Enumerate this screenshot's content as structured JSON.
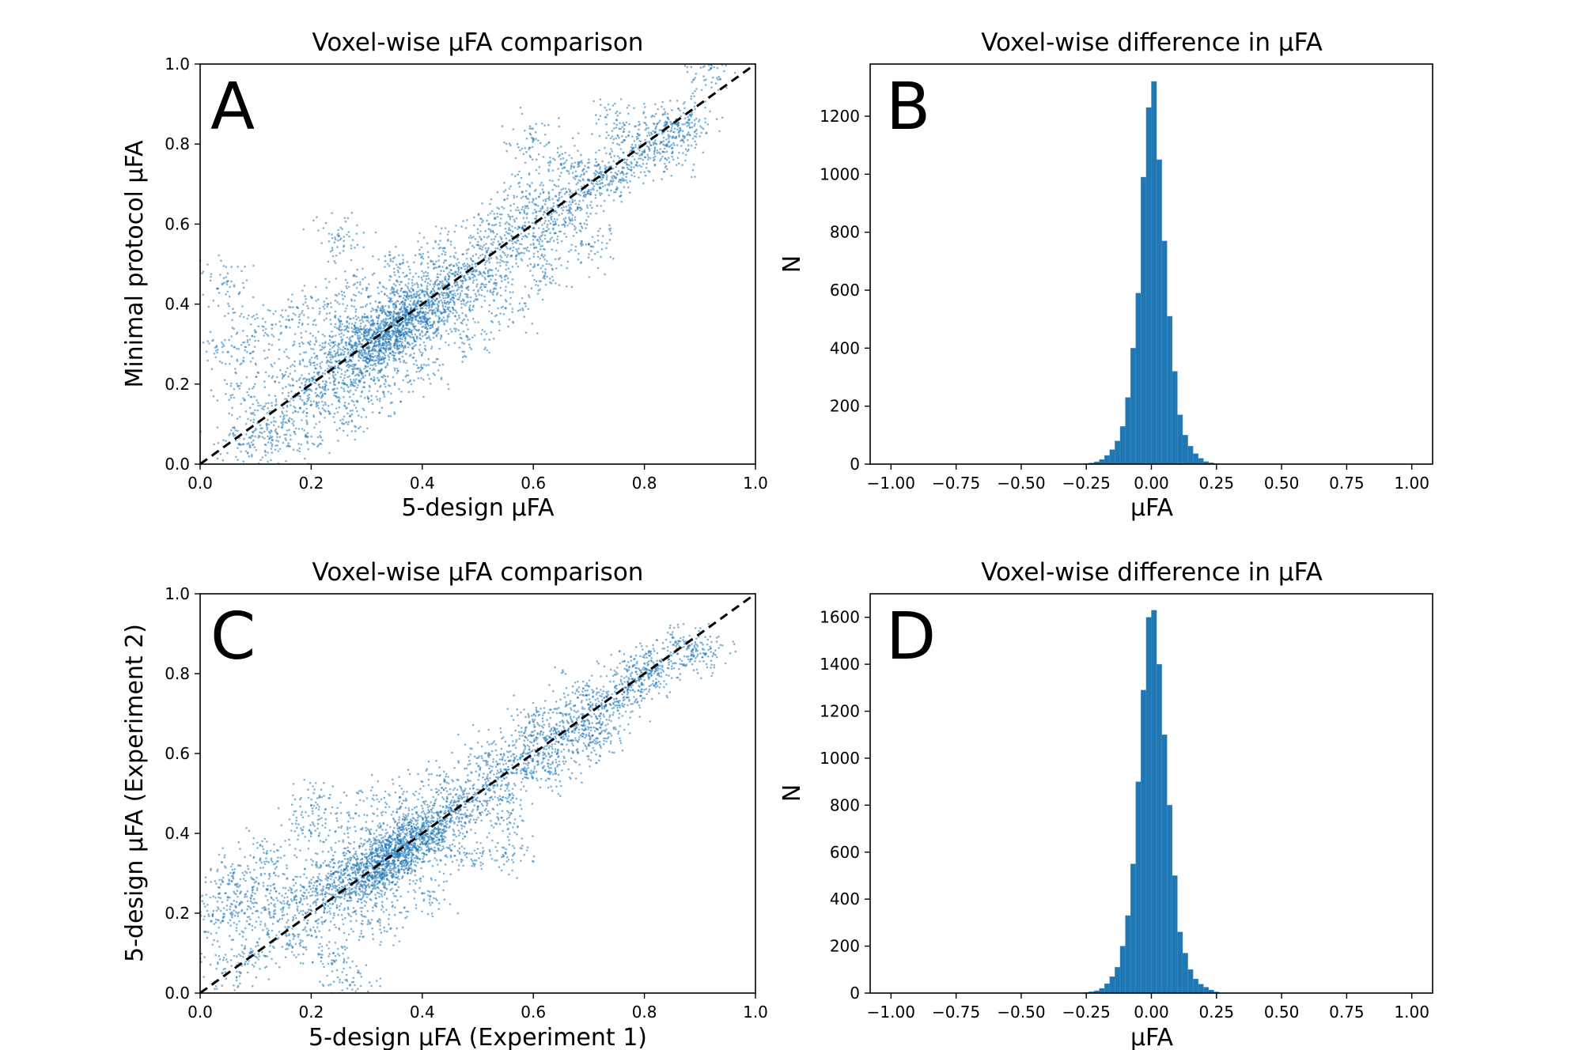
{
  "colors": {
    "series": "#1f77b4",
    "axis": "#000000",
    "background": "#ffffff"
  },
  "chart_data": [
    {
      "id": "A",
      "type": "scatter",
      "panel_label": "A",
      "title": "Voxel-wise μFA comparison",
      "xlabel": "5-design μFA",
      "ylabel": "Minimal protocol μFA",
      "xlim": [
        0.0,
        1.0
      ],
      "ylim": [
        0.0,
        1.0
      ],
      "xticks": [
        0.0,
        0.2,
        0.4,
        0.6,
        0.8,
        1.0
      ],
      "xtick_labels": [
        "0.0",
        "0.2",
        "0.4",
        "0.6",
        "0.8",
        "1.0"
      ],
      "yticks": [
        0.0,
        0.2,
        0.4,
        0.6,
        0.8,
        1.0
      ],
      "ytick_labels": [
        "0.0",
        "0.2",
        "0.4",
        "0.6",
        "0.8",
        "1.0"
      ],
      "reference_line": {
        "style": "dashed",
        "from": [
          0.0,
          0.0
        ],
        "to": [
          1.0,
          1.0
        ]
      },
      "series": [
        {
          "name": "voxels",
          "points": [
            [
              0.08,
              0.16
            ],
            [
              0.12,
              0.1
            ],
            [
              0.15,
              0.22
            ],
            [
              0.18,
              0.14
            ],
            [
              0.2,
              0.2
            ],
            [
              0.21,
              0.27
            ],
            [
              0.22,
              0.17
            ],
            [
              0.24,
              0.23
            ],
            [
              0.25,
              0.3
            ],
            [
              0.26,
              0.2
            ],
            [
              0.27,
              0.26
            ],
            [
              0.28,
              0.33
            ],
            [
              0.29,
              0.23
            ],
            [
              0.3,
              0.29
            ],
            [
              0.31,
              0.35
            ],
            [
              0.32,
              0.27
            ],
            [
              0.33,
              0.32
            ],
            [
              0.34,
              0.38
            ],
            [
              0.35,
              0.3
            ],
            [
              0.36,
              0.35
            ],
            [
              0.37,
              0.41
            ],
            [
              0.38,
              0.33
            ],
            [
              0.39,
              0.37
            ],
            [
              0.4,
              0.43
            ],
            [
              0.41,
              0.36
            ],
            [
              0.42,
              0.4
            ],
            [
              0.43,
              0.45
            ],
            [
              0.44,
              0.38
            ],
            [
              0.45,
              0.43
            ],
            [
              0.46,
              0.48
            ],
            [
              0.48,
              0.44
            ],
            [
              0.5,
              0.5
            ],
            [
              0.52,
              0.47
            ],
            [
              0.54,
              0.55
            ],
            [
              0.56,
              0.52
            ],
            [
              0.58,
              0.59
            ],
            [
              0.6,
              0.57
            ],
            [
              0.62,
              0.63
            ],
            [
              0.64,
              0.6
            ],
            [
              0.66,
              0.68
            ],
            [
              0.68,
              0.64
            ],
            [
              0.7,
              0.71
            ],
            [
              0.72,
              0.69
            ],
            [
              0.74,
              0.74
            ],
            [
              0.76,
              0.73
            ],
            [
              0.78,
              0.79
            ],
            [
              0.8,
              0.78
            ],
            [
              0.82,
              0.83
            ],
            [
              0.84,
              0.85
            ],
            [
              0.88,
              0.86
            ],
            [
              0.05,
              0.28
            ],
            [
              0.07,
              0.05
            ],
            [
              0.1,
              0.33
            ],
            [
              0.13,
              0.06
            ],
            [
              0.16,
              0.36
            ],
            [
              0.19,
              0.07
            ],
            [
              0.23,
              0.4
            ],
            [
              0.27,
              0.12
            ],
            [
              0.3,
              0.44
            ],
            [
              0.33,
              0.18
            ],
            [
              0.36,
              0.5
            ],
            [
              0.4,
              0.24
            ],
            [
              0.44,
              0.54
            ],
            [
              0.48,
              0.32
            ],
            [
              0.52,
              0.6
            ],
            [
              0.55,
              0.39
            ],
            [
              0.58,
              0.68
            ],
            [
              0.62,
              0.47
            ],
            [
              0.65,
              0.75
            ],
            [
              0.7,
              0.55
            ],
            [
              0.3,
              0.31
            ],
            [
              0.32,
              0.33
            ],
            [
              0.34,
              0.33
            ],
            [
              0.35,
              0.36
            ],
            [
              0.36,
              0.33
            ],
            [
              0.38,
              0.38
            ],
            [
              0.4,
              0.39
            ],
            [
              0.33,
              0.29
            ],
            [
              0.31,
              0.26
            ],
            [
              0.37,
              0.37
            ],
            [
              0.92,
              0.99
            ],
            [
              0.87,
              0.82
            ],
            [
              0.04,
              0.45
            ],
            [
              0.25,
              0.57
            ],
            [
              0.6,
              0.81
            ],
            [
              0.75,
              0.86
            ],
            [
              0.85,
              0.79
            ]
          ]
        }
      ]
    },
    {
      "id": "B",
      "type": "bar",
      "panel_label": "B",
      "title": "Voxel-wise difference in μFA",
      "xlabel": "μFA",
      "ylabel": "N",
      "xlim": [
        -1.08,
        1.08
      ],
      "ylim": [
        0,
        1380
      ],
      "xticks": [
        -1.0,
        -0.75,
        -0.5,
        -0.25,
        0.0,
        0.25,
        0.5,
        0.75,
        1.0
      ],
      "xtick_labels": [
        "−1.00",
        "−0.75",
        "−0.50",
        "−0.25",
        "0.00",
        "0.25",
        "0.50",
        "0.75",
        "1.00"
      ],
      "yticks": [
        0,
        200,
        400,
        600,
        800,
        1000,
        1200
      ],
      "ytick_labels": [
        "0",
        "200",
        "400",
        "600",
        "800",
        "1000",
        "1200"
      ],
      "bin_width": 0.02,
      "bin_left_edges": [
        -0.26,
        -0.24,
        -0.22,
        -0.2,
        -0.18,
        -0.16,
        -0.14,
        -0.12,
        -0.1,
        -0.08,
        -0.06,
        -0.04,
        -0.02,
        0.0,
        0.02,
        0.04,
        0.06,
        0.08,
        0.1,
        0.12,
        0.14,
        0.16,
        0.18,
        0.2,
        0.22,
        0.24
      ],
      "counts": [
        2,
        4,
        8,
        16,
        30,
        50,
        80,
        130,
        230,
        400,
        590,
        990,
        1230,
        1320,
        1050,
        770,
        510,
        320,
        170,
        100,
        62,
        36,
        20,
        9,
        5,
        2
      ]
    },
    {
      "id": "C",
      "type": "scatter",
      "panel_label": "C",
      "title": "Voxel-wise μFA comparison",
      "xlabel": "5-design μFA (Experiment 1)",
      "ylabel": "5-design μFA (Experiment 2)",
      "xlim": [
        0.0,
        1.0
      ],
      "ylim": [
        0.0,
        1.0
      ],
      "xticks": [
        0.0,
        0.2,
        0.4,
        0.6,
        0.8,
        1.0
      ],
      "xtick_labels": [
        "0.0",
        "0.2",
        "0.4",
        "0.6",
        "0.8",
        "1.0"
      ],
      "yticks": [
        0.0,
        0.2,
        0.4,
        0.6,
        0.8,
        1.0
      ],
      "ytick_labels": [
        "0.0",
        "0.2",
        "0.4",
        "0.6",
        "0.8",
        "1.0"
      ],
      "reference_line": {
        "style": "dashed",
        "from": [
          0.0,
          0.0
        ],
        "to": [
          1.0,
          1.0
        ]
      },
      "series": [
        {
          "name": "voxels",
          "points": [
            [
              0.05,
              0.24
            ],
            [
              0.08,
              0.2
            ],
            [
              0.12,
              0.26
            ],
            [
              0.14,
              0.18
            ],
            [
              0.17,
              0.24
            ],
            [
              0.19,
              0.2
            ],
            [
              0.21,
              0.28
            ],
            [
              0.22,
              0.22
            ],
            [
              0.24,
              0.3
            ],
            [
              0.25,
              0.25
            ],
            [
              0.26,
              0.31
            ],
            [
              0.27,
              0.24
            ],
            [
              0.28,
              0.32
            ],
            [
              0.29,
              0.27
            ],
            [
              0.3,
              0.34
            ],
            [
              0.31,
              0.29
            ],
            [
              0.32,
              0.36
            ],
            [
              0.33,
              0.31
            ],
            [
              0.34,
              0.37
            ],
            [
              0.35,
              0.33
            ],
            [
              0.36,
              0.38
            ],
            [
              0.37,
              0.34
            ],
            [
              0.38,
              0.4
            ],
            [
              0.39,
              0.36
            ],
            [
              0.4,
              0.42
            ],
            [
              0.41,
              0.38
            ],
            [
              0.42,
              0.43
            ],
            [
              0.43,
              0.4
            ],
            [
              0.44,
              0.45
            ],
            [
              0.45,
              0.43
            ],
            [
              0.47,
              0.47
            ],
            [
              0.49,
              0.48
            ],
            [
              0.51,
              0.52
            ],
            [
              0.53,
              0.52
            ],
            [
              0.55,
              0.56
            ],
            [
              0.57,
              0.56
            ],
            [
              0.59,
              0.6
            ],
            [
              0.61,
              0.6
            ],
            [
              0.63,
              0.64
            ],
            [
              0.65,
              0.64
            ],
            [
              0.67,
              0.68
            ],
            [
              0.69,
              0.67
            ],
            [
              0.71,
              0.71
            ],
            [
              0.73,
              0.72
            ],
            [
              0.75,
              0.75
            ],
            [
              0.77,
              0.76
            ],
            [
              0.79,
              0.79
            ],
            [
              0.81,
              0.8
            ],
            [
              0.83,
              0.83
            ],
            [
              0.86,
              0.85
            ],
            [
              0.04,
              0.05
            ],
            [
              0.06,
              0.3
            ],
            [
              0.09,
              0.1
            ],
            [
              0.12,
              0.35
            ],
            [
              0.16,
              0.12
            ],
            [
              0.2,
              0.4
            ],
            [
              0.24,
              0.1
            ],
            [
              0.28,
              0.45
            ],
            [
              0.32,
              0.18
            ],
            [
              0.36,
              0.49
            ],
            [
              0.4,
              0.25
            ],
            [
              0.44,
              0.53
            ],
            [
              0.48,
              0.35
            ],
            [
              0.52,
              0.6
            ],
            [
              0.56,
              0.45
            ],
            [
              0.6,
              0.68
            ],
            [
              0.64,
              0.55
            ],
            [
              0.68,
              0.74
            ],
            [
              0.72,
              0.65
            ],
            [
              0.78,
              0.82
            ],
            [
              0.3,
              0.3
            ],
            [
              0.32,
              0.33
            ],
            [
              0.34,
              0.34
            ],
            [
              0.35,
              0.36
            ],
            [
              0.37,
              0.37
            ],
            [
              0.38,
              0.39
            ],
            [
              0.4,
              0.4
            ],
            [
              0.33,
              0.3
            ],
            [
              0.31,
              0.27
            ],
            [
              0.36,
              0.35
            ],
            [
              0.88,
              0.87
            ],
            [
              0.91,
              0.85
            ],
            [
              0.27,
              0.02
            ],
            [
              0.2,
              0.47
            ],
            [
              0.55,
              0.35
            ],
            [
              0.02,
              0.18
            ],
            [
              0.7,
              0.62
            ]
          ]
        }
      ]
    },
    {
      "id": "D",
      "type": "bar",
      "panel_label": "D",
      "title": "Voxel-wise difference in μFA",
      "xlabel": "μFA",
      "ylabel": "N",
      "xlim": [
        -1.08,
        1.08
      ],
      "ylim": [
        0,
        1700
      ],
      "xticks": [
        -1.0,
        -0.75,
        -0.5,
        -0.25,
        0.0,
        0.25,
        0.5,
        0.75,
        1.0
      ],
      "xtick_labels": [
        "−1.00",
        "−0.75",
        "−0.50",
        "−0.25",
        "0.00",
        "0.25",
        "0.50",
        "0.75",
        "1.00"
      ],
      "yticks": [
        0,
        200,
        400,
        600,
        800,
        1000,
        1200,
        1400,
        1600
      ],
      "ytick_labels": [
        "0",
        "200",
        "400",
        "600",
        "800",
        "1000",
        "1200",
        "1400",
        "1600"
      ],
      "bin_width": 0.02,
      "bin_left_edges": [
        -0.26,
        -0.24,
        -0.22,
        -0.2,
        -0.18,
        -0.16,
        -0.14,
        -0.12,
        -0.1,
        -0.08,
        -0.06,
        -0.04,
        -0.02,
        0.0,
        0.02,
        0.04,
        0.06,
        0.08,
        0.1,
        0.12,
        0.14,
        0.16,
        0.18,
        0.2,
        0.22,
        0.24
      ],
      "counts": [
        3,
        6,
        10,
        20,
        40,
        70,
        110,
        200,
        330,
        550,
        900,
        1290,
        1600,
        1630,
        1400,
        1100,
        800,
        500,
        260,
        170,
        100,
        60,
        38,
        25,
        13,
        5
      ]
    }
  ]
}
